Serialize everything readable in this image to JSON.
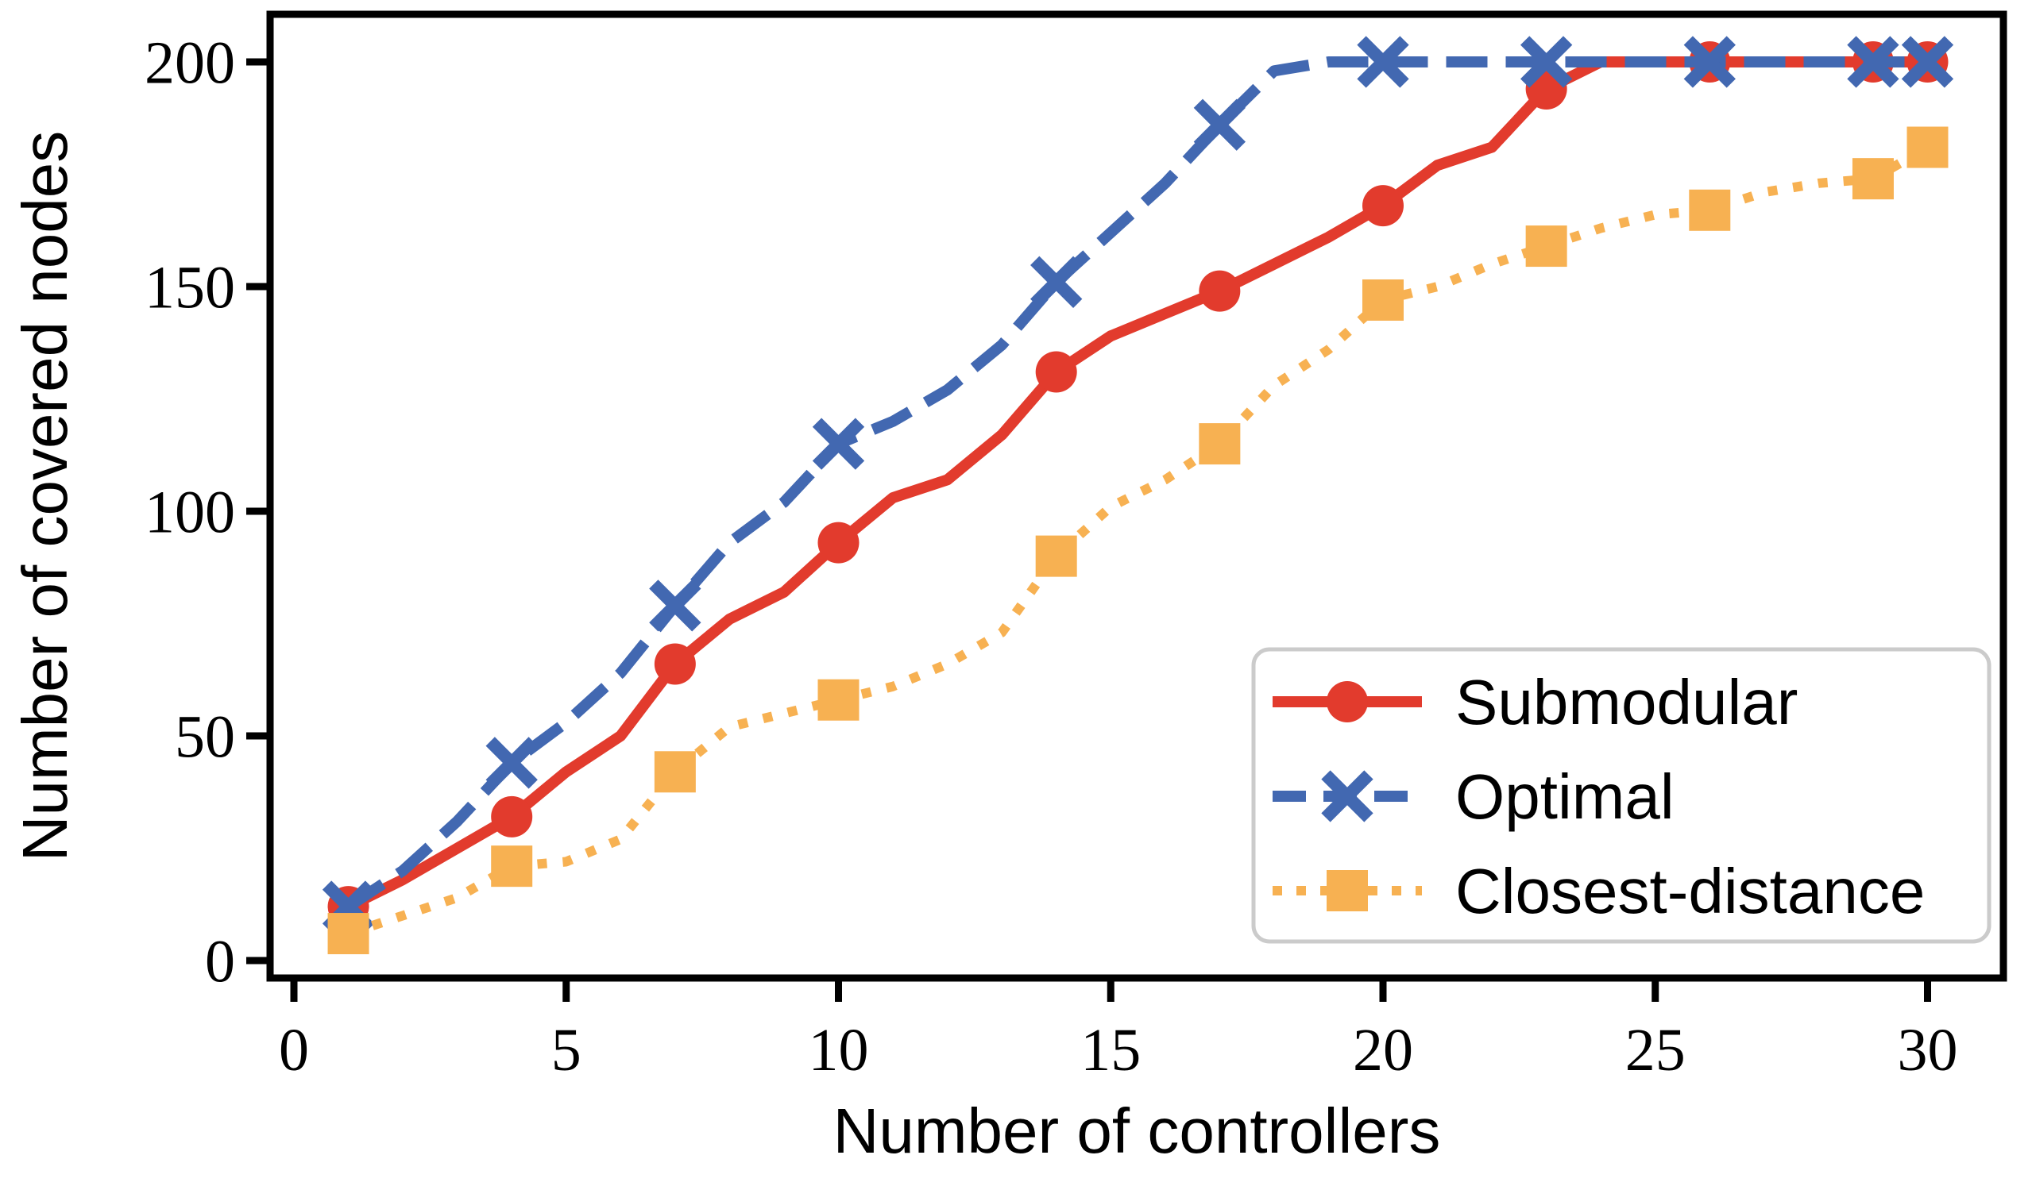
{
  "chart_data": {
    "type": "line",
    "title": "",
    "xlabel": "Number of controllers",
    "ylabel": "Number of covered nodes",
    "x_ticks": [
      0,
      5,
      10,
      15,
      20,
      25,
      30
    ],
    "y_ticks": [
      0,
      50,
      100,
      150,
      200
    ],
    "xlim": [
      -0.45,
      31.45
    ],
    "ylim": [
      -4,
      211
    ],
    "grid": false,
    "legend_position": "lower right",
    "x": [
      1,
      2,
      3,
      4,
      5,
      6,
      7,
      8,
      9,
      10,
      11,
      12,
      13,
      14,
      15,
      16,
      17,
      18,
      19,
      20,
      21,
      22,
      23,
      24,
      25,
      26,
      27,
      28,
      29,
      30
    ],
    "marker_x": [
      1,
      4,
      7,
      10,
      14,
      17,
      20,
      23,
      26,
      29,
      30
    ],
    "series": [
      {
        "name": "Submodular",
        "color": "#e23b2d",
        "line_style": "solid",
        "marker": "circle",
        "values": [
          12,
          18,
          25,
          32,
          42,
          50,
          66,
          76,
          82,
          93,
          103,
          107,
          117,
          131,
          139,
          144,
          149,
          155,
          161,
          168,
          177,
          181,
          194,
          200,
          200,
          200,
          200,
          200,
          200,
          200
        ]
      },
      {
        "name": "Optimal",
        "color": "#4268b1",
        "line_style": "dashed",
        "marker": "x",
        "values": [
          12,
          20,
          31,
          44,
          53,
          64,
          79,
          93,
          102,
          115,
          120,
          127,
          137,
          151,
          162,
          173,
          186,
          198,
          200,
          200,
          200,
          200,
          200,
          200,
          200,
          200,
          200,
          200,
          200,
          200
        ]
      },
      {
        "name": "Closest-distance",
        "color": "#f7b152",
        "line_style": "dotted",
        "marker": "square",
        "values": [
          6,
          10,
          14,
          21,
          22,
          27,
          42,
          52,
          55,
          58,
          61,
          66,
          73,
          90,
          101,
          107,
          115,
          128,
          136,
          147,
          150,
          155,
          159,
          163,
          166,
          167,
          171,
          173,
          174,
          181
        ]
      }
    ],
    "colors": {
      "axis": "#000000",
      "legend_border": "#cbcbcb",
      "background": "#ffffff"
    }
  }
}
